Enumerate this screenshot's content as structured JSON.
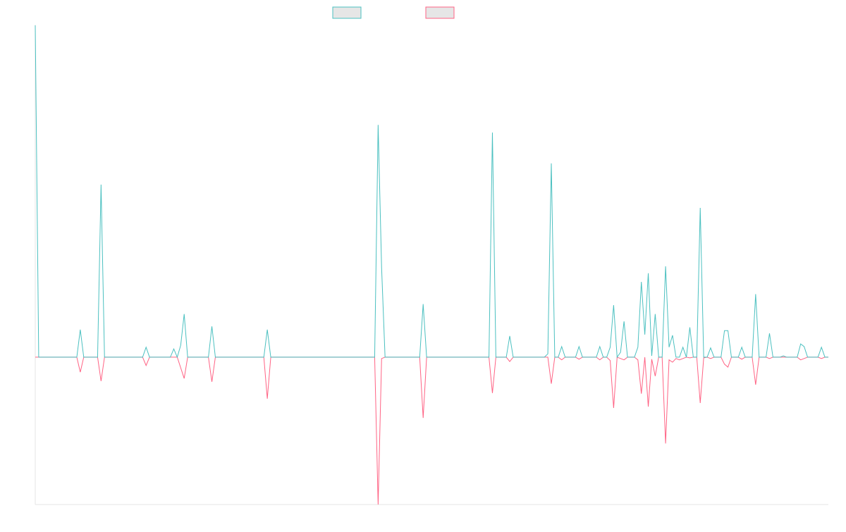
{
  "chart_data": {
    "type": "line",
    "ylim": [
      -44.4,
      100
    ],
    "series": [
      {
        "color": "#4bc0c0",
        "values": [
          100,
          0,
          0,
          0,
          0,
          0,
          0,
          0,
          0,
          0,
          0,
          0,
          0,
          8.3,
          0,
          0,
          0,
          0,
          0,
          52,
          0,
          0,
          0,
          0,
          0,
          0,
          0,
          0,
          0,
          0,
          0,
          0,
          3,
          0,
          0,
          0,
          0,
          0,
          0,
          0,
          2.5,
          0,
          3.6,
          13,
          0,
          0,
          0,
          0,
          0,
          0,
          0,
          9.3,
          0,
          0,
          0,
          0,
          0,
          0,
          0,
          0,
          0,
          0,
          0,
          0,
          0,
          0,
          0,
          8.3,
          0,
          0,
          0,
          0,
          0,
          0,
          0,
          0,
          0,
          0,
          0,
          0,
          0,
          0,
          0,
          0,
          0,
          0,
          0,
          0,
          0,
          0,
          0,
          0,
          0,
          0,
          0,
          0,
          0,
          0,
          0,
          70,
          27,
          0,
          0,
          0,
          0,
          0,
          0,
          0,
          0,
          0,
          0,
          0,
          16,
          0,
          0,
          0,
          0,
          0,
          0,
          0,
          0,
          0,
          0,
          0,
          0,
          0,
          0,
          0,
          0,
          0,
          0,
          0,
          67.7,
          0,
          0,
          0,
          0,
          6.4,
          0,
          0,
          0,
          0,
          0,
          0,
          0,
          0,
          0,
          0,
          1,
          58.4,
          0,
          0,
          3.2,
          0,
          0,
          0,
          0,
          3.2,
          0,
          0,
          0,
          0,
          0,
          3.2,
          0,
          0,
          3,
          15.7,
          0,
          1.5,
          10.8,
          0,
          0,
          0,
          3,
          22.7,
          6.8,
          25.3,
          0.4,
          13,
          0,
          0,
          27.4,
          3,
          6.6,
          0,
          0,
          3,
          0,
          9,
          0,
          0,
          45,
          0,
          0,
          2.8,
          0,
          0,
          0,
          8,
          8,
          0,
          0,
          0,
          3,
          0,
          0,
          0,
          19,
          0,
          0,
          0,
          7.2,
          0,
          0,
          0,
          0.4,
          0,
          0,
          0,
          0,
          4,
          3.2,
          0,
          0,
          0,
          0,
          3,
          0,
          0
        ]
      },
      {
        "color": "#ff6384",
        "values": [
          0,
          0,
          0,
          0,
          0,
          0,
          0,
          0,
          0,
          0,
          0,
          0,
          0,
          -4.5,
          0,
          0,
          0,
          0,
          0,
          -7.2,
          0,
          0,
          0,
          0,
          0,
          0,
          0,
          0,
          0,
          0,
          0,
          0,
          -2.5,
          0,
          0,
          0,
          0,
          0,
          0,
          0,
          0,
          0,
          -3.2,
          -6.4,
          0,
          0,
          0,
          0,
          0,
          0,
          0,
          -7.4,
          0,
          0,
          0,
          0,
          0,
          0,
          0,
          0,
          0,
          0,
          0,
          0,
          0,
          0,
          0,
          -12.5,
          0,
          0,
          0,
          0,
          0,
          0,
          0,
          0,
          0,
          0,
          0,
          0,
          0,
          0,
          0,
          0,
          0,
          0,
          0,
          0,
          0,
          0,
          0,
          0,
          0,
          0,
          0,
          0,
          0,
          0,
          0,
          -44.4,
          -0.4,
          0,
          0,
          0,
          0,
          0,
          0,
          0,
          0,
          0,
          0,
          0,
          -18.3,
          0,
          0,
          0,
          0,
          0,
          0,
          0,
          0,
          0,
          0,
          0,
          0,
          0,
          0,
          0,
          0,
          0,
          0,
          0,
          -10.8,
          0,
          0,
          0,
          0,
          -1.3,
          0,
          0,
          0,
          0,
          0,
          0,
          0,
          0,
          0,
          0,
          0,
          -8,
          0,
          0,
          -0.8,
          0,
          0,
          0,
          0,
          -0.6,
          0,
          0,
          0,
          0,
          0,
          -0.8,
          0,
          0,
          -1,
          -15.3,
          0,
          -0.4,
          -0.8,
          0,
          0,
          0,
          -0.8,
          -11,
          0,
          -14.9,
          -0.6,
          -5.7,
          0,
          0,
          -26,
          -0.8,
          -1.5,
          -0.4,
          -0.8,
          -0.4,
          0,
          -0.2,
          0,
          0,
          -13.8,
          -0.2,
          0,
          -0.4,
          0,
          0,
          0,
          -2.1,
          -3,
          0,
          0,
          0,
          -0.6,
          0,
          0,
          0,
          -8.3,
          0,
          0,
          0,
          -0.4,
          0,
          0,
          0,
          0,
          0,
          0,
          0,
          0,
          -0.8,
          -0.4,
          0,
          0,
          0,
          0,
          -0.4,
          0,
          0
        ]
      }
    ]
  }
}
